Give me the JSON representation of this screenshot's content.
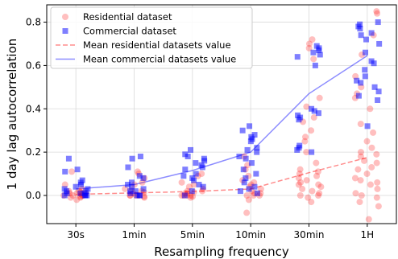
{
  "chart_data": {
    "type": "scatter",
    "title": "",
    "xlabel": "Resampling frequency",
    "ylabel": "1 day lag autocorrelation",
    "categories": [
      "30s",
      "1min",
      "5min",
      "10min",
      "30min",
      "1H"
    ],
    "y_ticks": [
      "0.0",
      "0.2",
      "0.4",
      "0.6",
      "0.8"
    ],
    "ylim": [
      -0.13,
      0.88
    ],
    "grid": true,
    "legend_position": "top-left",
    "series": [
      {
        "name": "Residential dataset",
        "marker": "circle",
        "color": "#ff0000",
        "alpha": 0.25,
        "points": [
          [
            0,
            0.0
          ],
          [
            0,
            0.01
          ],
          [
            0,
            -0.01
          ],
          [
            0,
            0.02
          ],
          [
            0,
            0.005
          ],
          [
            0,
            -0.02
          ],
          [
            0,
            0.11
          ],
          [
            0,
            0.0
          ],
          [
            0,
            0.03
          ],
          [
            0,
            0.01
          ],
          [
            0,
            -0.01
          ],
          [
            0,
            0.02
          ],
          [
            0,
            0.0
          ],
          [
            0,
            0.01
          ],
          [
            0,
            0.0
          ],
          [
            0,
            -0.005
          ],
          [
            0,
            0.015
          ],
          [
            0,
            0.05
          ],
          [
            1,
            0.0
          ],
          [
            1,
            0.01
          ],
          [
            1,
            -0.01
          ],
          [
            1,
            0.02
          ],
          [
            1,
            0.03
          ],
          [
            1,
            0.05
          ],
          [
            1,
            0.08
          ],
          [
            1,
            0.1
          ],
          [
            1,
            0.11
          ],
          [
            1,
            0.0
          ],
          [
            1,
            -0.005
          ],
          [
            1,
            0.015
          ],
          [
            1,
            0.025
          ],
          [
            1,
            0.0
          ],
          [
            1,
            0.06
          ],
          [
            1,
            0.0
          ],
          [
            2,
            0.0
          ],
          [
            2,
            0.01
          ],
          [
            2,
            -0.01
          ],
          [
            2,
            0.02
          ],
          [
            2,
            0.03
          ],
          [
            2,
            0.05
          ],
          [
            2,
            0.09
          ],
          [
            2,
            0.1
          ],
          [
            2,
            0.06
          ],
          [
            2,
            0.0
          ],
          [
            2,
            0.015
          ],
          [
            2,
            -0.005
          ],
          [
            2,
            0.0
          ],
          [
            2,
            0.01
          ],
          [
            2,
            0.02
          ],
          [
            2,
            0.0
          ],
          [
            2,
            0.04
          ],
          [
            3,
            0.0
          ],
          [
            3,
            0.01
          ],
          [
            3,
            0.03
          ],
          [
            3,
            0.05
          ],
          [
            3,
            0.07
          ],
          [
            3,
            0.09
          ],
          [
            3,
            0.12
          ],
          [
            3,
            0.14
          ],
          [
            3,
            -0.02
          ],
          [
            3,
            -0.08
          ],
          [
            3,
            0.02
          ],
          [
            3,
            0.0
          ],
          [
            3,
            0.18
          ],
          [
            3,
            0.01
          ],
          [
            3,
            0.04
          ],
          [
            3,
            0.0
          ],
          [
            3,
            0.06
          ],
          [
            4,
            0.72
          ],
          [
            4,
            0.7
          ],
          [
            4,
            0.68
          ],
          [
            4,
            0.63
          ],
          [
            4,
            0.45
          ],
          [
            4,
            0.41
          ],
          [
            4,
            0.36
          ],
          [
            4,
            0.34
          ],
          [
            4,
            0.3
          ],
          [
            4,
            0.27
          ],
          [
            4,
            0.25
          ],
          [
            4,
            0.2
          ],
          [
            4,
            0.15
          ],
          [
            4,
            0.11
          ],
          [
            4,
            0.1
          ],
          [
            4,
            0.09
          ],
          [
            4,
            0.08
          ],
          [
            4,
            0.07
          ],
          [
            4,
            0.06
          ],
          [
            4,
            0.05
          ],
          [
            4,
            0.04
          ],
          [
            4,
            0.03
          ],
          [
            4,
            0.02
          ],
          [
            4,
            0.0
          ],
          [
            4,
            -0.01
          ],
          [
            4,
            -0.03
          ],
          [
            4,
            0.12
          ],
          [
            4,
            0.01
          ],
          [
            4,
            0.0
          ],
          [
            4,
            0.05
          ],
          [
            5,
            0.85
          ],
          [
            5,
            0.84
          ],
          [
            5,
            0.74
          ],
          [
            5,
            0.65
          ],
          [
            5,
            0.55
          ],
          [
            5,
            0.5
          ],
          [
            5,
            0.47
          ],
          [
            5,
            0.45
          ],
          [
            5,
            0.4
          ],
          [
            5,
            0.33
          ],
          [
            5,
            0.29
          ],
          [
            5,
            0.25
          ],
          [
            5,
            0.22
          ],
          [
            5,
            0.2
          ],
          [
            5,
            0.19
          ],
          [
            5,
            0.18
          ],
          [
            5,
            0.16
          ],
          [
            5,
            0.15
          ],
          [
            5,
            0.12
          ],
          [
            5,
            0.1
          ],
          [
            5,
            0.08
          ],
          [
            5,
            0.06
          ],
          [
            5,
            0.05
          ],
          [
            5,
            0.03
          ],
          [
            5,
            0.01
          ],
          [
            5,
            -0.01
          ],
          [
            5,
            -0.03
          ],
          [
            5,
            -0.05
          ],
          [
            5,
            -0.11
          ],
          [
            5,
            0.13
          ],
          [
            5,
            0.0
          ],
          [
            5,
            0.07
          ]
        ]
      },
      {
        "name": "Commercial dataset",
        "marker": "square",
        "color": "#0000ff",
        "alpha": 0.5,
        "points": [
          [
            0,
            0.17
          ],
          [
            0,
            0.12
          ],
          [
            0,
            0.11
          ],
          [
            0,
            0.07
          ],
          [
            0,
            0.06
          ],
          [
            0,
            0.05
          ],
          [
            0,
            0.04
          ],
          [
            0,
            0.03
          ],
          [
            0,
            0.02
          ],
          [
            0,
            0.02
          ],
          [
            0,
            0.01
          ],
          [
            0,
            0.01
          ],
          [
            0,
            0.0
          ],
          [
            0,
            0.0
          ],
          [
            0,
            0.0
          ],
          [
            0,
            0.01
          ],
          [
            0,
            0.03
          ],
          [
            0,
            0.0
          ],
          [
            1,
            0.18
          ],
          [
            1,
            0.17
          ],
          [
            1,
            0.13
          ],
          [
            1,
            0.09
          ],
          [
            1,
            0.08
          ],
          [
            1,
            0.06
          ],
          [
            1,
            0.05
          ],
          [
            1,
            0.04
          ],
          [
            1,
            0.03
          ],
          [
            1,
            0.02
          ],
          [
            1,
            0.01
          ],
          [
            1,
            0.0
          ],
          [
            1,
            0.0
          ],
          [
            1,
            0.02
          ],
          [
            1,
            0.0
          ],
          [
            2,
            0.21
          ],
          [
            2,
            0.19
          ],
          [
            2,
            0.18
          ],
          [
            2,
            0.17
          ],
          [
            2,
            0.16
          ],
          [
            2,
            0.15
          ],
          [
            2,
            0.14
          ],
          [
            2,
            0.13
          ],
          [
            2,
            0.12
          ],
          [
            2,
            0.1
          ],
          [
            2,
            0.09
          ],
          [
            2,
            0.08
          ],
          [
            2,
            0.07
          ],
          [
            2,
            0.05
          ],
          [
            2,
            0.04
          ],
          [
            2,
            0.02
          ],
          [
            2,
            0.0
          ],
          [
            3,
            0.32
          ],
          [
            3,
            0.3
          ],
          [
            3,
            0.28
          ],
          [
            3,
            0.27
          ],
          [
            3,
            0.26
          ],
          [
            3,
            0.25
          ],
          [
            3,
            0.22
          ],
          [
            3,
            0.21
          ],
          [
            3,
            0.2
          ],
          [
            3,
            0.18
          ],
          [
            3,
            0.17
          ],
          [
            3,
            0.15
          ],
          [
            3,
            0.12
          ],
          [
            3,
            0.1
          ],
          [
            3,
            0.08
          ],
          [
            3,
            0.06
          ],
          [
            3,
            0.04
          ],
          [
            3,
            0.03
          ],
          [
            3,
            0.02
          ],
          [
            3,
            0.01
          ],
          [
            4,
            0.69
          ],
          [
            4,
            0.68
          ],
          [
            4,
            0.67
          ],
          [
            4,
            0.66
          ],
          [
            4,
            0.65
          ],
          [
            4,
            0.64
          ],
          [
            4,
            0.6
          ],
          [
            4,
            0.4
          ],
          [
            4,
            0.39
          ],
          [
            4,
            0.38
          ],
          [
            4,
            0.37
          ],
          [
            4,
            0.36
          ],
          [
            4,
            0.35
          ],
          [
            4,
            0.23
          ],
          [
            4,
            0.22
          ],
          [
            4,
            0.21
          ],
          [
            4,
            0.2
          ],
          [
            5,
            0.8
          ],
          [
            5,
            0.79
          ],
          [
            5,
            0.78
          ],
          [
            5,
            0.77
          ],
          [
            5,
            0.75
          ],
          [
            5,
            0.74
          ],
          [
            5,
            0.72
          ],
          [
            5,
            0.7
          ],
          [
            5,
            0.66
          ],
          [
            5,
            0.62
          ],
          [
            5,
            0.61
          ],
          [
            5,
            0.58
          ],
          [
            5,
            0.55
          ],
          [
            5,
            0.53
          ],
          [
            5,
            0.52
          ],
          [
            5,
            0.5
          ],
          [
            5,
            0.48
          ],
          [
            5,
            0.46
          ],
          [
            5,
            0.44
          ],
          [
            5,
            0.32
          ]
        ]
      },
      {
        "name": "Mean residential datasets value",
        "type": "line",
        "style": "dashed",
        "color": "#ff0000",
        "values": [
          0.005,
          0.012,
          0.018,
          0.03,
          0.105,
          0.175
        ]
      },
      {
        "name": "Mean commercial datasets value",
        "type": "line",
        "style": "solid",
        "color": "#0000ff",
        "values": [
          0.03,
          0.05,
          0.115,
          0.2,
          0.47,
          0.645
        ]
      }
    ]
  }
}
